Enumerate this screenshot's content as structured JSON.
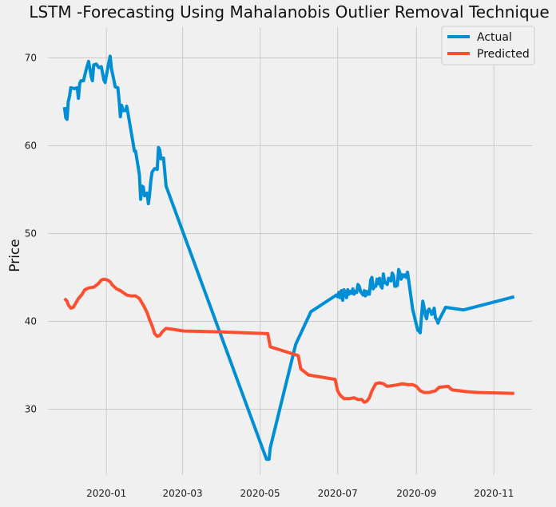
{
  "chart_data": {
    "type": "line",
    "title": "LSTM -Forecasting Using Mahalanobis Outlier Removal Technique",
    "xlabel": "",
    "ylabel": "Price",
    "x_axis_type": "date",
    "xlim": [
      "2019-11-16",
      "2020-12-01"
    ],
    "ylim": [
      22.5,
      73.5
    ],
    "x_tick_labels": [
      "2020-01",
      "2020-03",
      "2020-05",
      "2020-07",
      "2020-09",
      "2020-11"
    ],
    "y_tick_labels": [
      30,
      40,
      50,
      60,
      70
    ],
    "grid": true,
    "legend_position": "top-right",
    "colors": {
      "background": "#f0f0f0",
      "grid": "#cbcbcb",
      "actual": "#008fd5",
      "predicted": "#fc4f30"
    },
    "series": [
      {
        "name": "Actual",
        "points": [
          [
            "2019-11-29",
            64.4
          ],
          [
            "2019-11-30",
            63.2
          ],
          [
            "2019-12-01",
            63.0
          ],
          [
            "2019-12-02",
            65.0
          ],
          [
            "2019-12-03",
            65.6
          ],
          [
            "2019-12-04",
            66.6
          ],
          [
            "2019-12-07",
            66.5
          ],
          [
            "2019-12-09",
            66.6
          ],
          [
            "2019-12-10",
            65.4
          ],
          [
            "2019-12-11",
            67.1
          ],
          [
            "2019-12-12",
            67.4
          ],
          [
            "2019-12-14",
            67.4
          ],
          [
            "2019-12-16",
            68.6
          ],
          [
            "2019-12-17",
            69.1
          ],
          [
            "2019-12-18",
            69.6
          ],
          [
            "2019-12-19",
            68.8
          ],
          [
            "2019-12-20",
            67.9
          ],
          [
            "2019-12-21",
            67.4
          ],
          [
            "2019-12-22",
            69.2
          ],
          [
            "2019-12-24",
            69.3
          ],
          [
            "2019-12-26",
            68.9
          ],
          [
            "2019-12-28",
            69.0
          ],
          [
            "2019-12-30",
            67.5
          ],
          [
            "2019-12-31",
            67.2
          ],
          [
            "2020-01-01",
            68.0
          ],
          [
            "2020-01-03",
            69.5
          ],
          [
            "2020-01-04",
            70.2
          ],
          [
            "2020-01-05",
            68.8
          ],
          [
            "2020-01-07",
            67.4
          ],
          [
            "2020-01-08",
            66.7
          ],
          [
            "2020-01-10",
            66.6
          ],
          [
            "2020-01-11",
            65.2
          ],
          [
            "2020-01-12",
            63.3
          ],
          [
            "2020-01-13",
            64.6
          ],
          [
            "2020-01-14",
            64.0
          ],
          [
            "2020-01-16",
            64.0
          ],
          [
            "2020-01-17",
            64.5
          ],
          [
            "2020-01-18",
            63.7
          ],
          [
            "2020-01-20",
            62.0
          ],
          [
            "2020-01-22",
            60.3
          ],
          [
            "2020-01-23",
            59.4
          ],
          [
            "2020-01-24",
            59.4
          ],
          [
            "2020-01-25",
            58.5
          ],
          [
            "2020-01-27",
            56.7
          ],
          [
            "2020-01-28",
            53.9
          ],
          [
            "2020-01-29",
            55.4
          ],
          [
            "2020-01-30",
            55.3
          ],
          [
            "2020-01-31",
            54.3
          ],
          [
            "2020-02-02",
            54.6
          ],
          [
            "2020-02-03",
            53.4
          ],
          [
            "2020-02-04",
            54.4
          ],
          [
            "2020-02-05",
            56.0
          ],
          [
            "2020-02-06",
            57.0
          ],
          [
            "2020-02-08",
            57.4
          ],
          [
            "2020-02-10",
            57.3
          ],
          [
            "2020-02-11",
            59.8
          ],
          [
            "2020-02-12",
            59.5
          ],
          [
            "2020-02-13",
            58.5
          ],
          [
            "2020-02-15",
            58.6
          ],
          [
            "2020-02-17",
            55.4
          ],
          [
            "2020-05-06",
            24.3
          ],
          [
            "2020-05-08",
            24.3
          ],
          [
            "2020-05-09",
            25.6
          ],
          [
            "2020-05-29",
            37.4
          ],
          [
            "2020-05-31",
            38.0
          ],
          [
            "2020-06-10",
            41.1
          ],
          [
            "2020-06-30",
            43.0
          ],
          [
            "2020-07-01",
            42.8
          ],
          [
            "2020-07-02",
            43.3
          ],
          [
            "2020-07-03",
            42.7
          ],
          [
            "2020-07-04",
            43.5
          ],
          [
            "2020-07-05",
            42.4
          ],
          [
            "2020-07-06",
            43.6
          ],
          [
            "2020-07-07",
            43.3
          ],
          [
            "2020-07-08",
            42.7
          ],
          [
            "2020-07-09",
            43.6
          ],
          [
            "2020-07-10",
            43.1
          ],
          [
            "2020-07-11",
            43.4
          ],
          [
            "2020-07-12",
            43.2
          ],
          [
            "2020-07-13",
            43.7
          ],
          [
            "2020-07-14",
            43.1
          ],
          [
            "2020-07-15",
            43.4
          ],
          [
            "2020-07-16",
            43.3
          ],
          [
            "2020-07-17",
            44.2
          ],
          [
            "2020-07-18",
            44.0
          ],
          [
            "2020-07-19",
            43.4
          ],
          [
            "2020-07-20",
            43.2
          ],
          [
            "2020-07-21",
            43.0
          ],
          [
            "2020-07-22",
            43.5
          ],
          [
            "2020-07-23",
            42.9
          ],
          [
            "2020-07-24",
            43.4
          ],
          [
            "2020-07-25",
            43.1
          ],
          [
            "2020-07-26",
            43.1
          ],
          [
            "2020-07-27",
            44.7
          ],
          [
            "2020-07-28",
            45.0
          ],
          [
            "2020-07-29",
            43.7
          ],
          [
            "2020-07-30",
            44.0
          ],
          [
            "2020-07-31",
            44.0
          ],
          [
            "2020-08-01",
            44.8
          ],
          [
            "2020-08-02",
            44.3
          ],
          [
            "2020-08-03",
            44.9
          ],
          [
            "2020-08-04",
            44.0
          ],
          [
            "2020-08-05",
            43.8
          ],
          [
            "2020-08-06",
            45.4
          ],
          [
            "2020-08-07",
            44.4
          ],
          [
            "2020-08-08",
            44.4
          ],
          [
            "2020-08-09",
            44.2
          ],
          [
            "2020-08-10",
            44.9
          ],
          [
            "2020-08-11",
            44.8
          ],
          [
            "2020-08-12",
            44.6
          ],
          [
            "2020-08-13",
            45.5
          ],
          [
            "2020-08-14",
            45.2
          ],
          [
            "2020-08-15",
            44.0
          ],
          [
            "2020-08-16",
            44.0
          ],
          [
            "2020-08-17",
            44.1
          ],
          [
            "2020-08-18",
            45.9
          ],
          [
            "2020-08-19",
            45.5
          ],
          [
            "2020-08-20",
            44.8
          ],
          [
            "2020-08-21",
            45.3
          ],
          [
            "2020-08-22",
            45.1
          ],
          [
            "2020-08-23",
            45.3
          ],
          [
            "2020-08-24",
            45.0
          ],
          [
            "2020-08-25",
            45.6
          ],
          [
            "2020-08-26",
            44.6
          ],
          [
            "2020-08-29",
            41.4
          ],
          [
            "2020-09-02",
            39.0
          ],
          [
            "2020-09-03",
            38.9
          ],
          [
            "2020-09-04",
            38.7
          ],
          [
            "2020-09-05",
            40.5
          ],
          [
            "2020-09-06",
            42.3
          ],
          [
            "2020-09-07",
            41.6
          ],
          [
            "2020-09-08",
            40.7
          ],
          [
            "2020-09-09",
            40.3
          ],
          [
            "2020-09-10",
            41.2
          ],
          [
            "2020-09-11",
            41.4
          ],
          [
            "2020-09-12",
            41.2
          ],
          [
            "2020-09-13",
            40.8
          ],
          [
            "2020-09-14",
            40.9
          ],
          [
            "2020-09-15",
            41.5
          ],
          [
            "2020-09-16",
            40.4
          ],
          [
            "2020-09-17",
            40.2
          ],
          [
            "2020-09-18",
            39.8
          ],
          [
            "2020-09-19",
            40.2
          ],
          [
            "2020-09-24",
            41.6
          ],
          [
            "2020-10-08",
            41.3
          ],
          [
            "2020-11-17",
            42.8
          ]
        ]
      },
      {
        "name": "Predicted",
        "points": [
          [
            "2019-11-29",
            42.6
          ],
          [
            "2019-12-01",
            42.3
          ],
          [
            "2019-12-02",
            41.9
          ],
          [
            "2019-12-04",
            41.5
          ],
          [
            "2019-12-06",
            41.6
          ],
          [
            "2019-12-08",
            42.1
          ],
          [
            "2019-12-10",
            42.6
          ],
          [
            "2019-12-13",
            43.1
          ],
          [
            "2019-12-15",
            43.6
          ],
          [
            "2019-12-18",
            43.8
          ],
          [
            "2019-12-22",
            43.9
          ],
          [
            "2019-12-25",
            44.2
          ],
          [
            "2019-12-28",
            44.7
          ],
          [
            "2019-12-30",
            44.8
          ],
          [
            "2020-01-02",
            44.7
          ],
          [
            "2020-01-04",
            44.5
          ],
          [
            "2020-01-06",
            44.1
          ],
          [
            "2020-01-09",
            43.7
          ],
          [
            "2020-01-12",
            43.5
          ],
          [
            "2020-01-15",
            43.2
          ],
          [
            "2020-01-17",
            43.0
          ],
          [
            "2020-01-20",
            42.9
          ],
          [
            "2020-01-24",
            42.9
          ],
          [
            "2020-01-27",
            42.6
          ],
          [
            "2020-01-29",
            42.1
          ],
          [
            "2020-01-31",
            41.6
          ],
          [
            "2020-02-02",
            41.0
          ],
          [
            "2020-02-04",
            40.2
          ],
          [
            "2020-02-06",
            39.5
          ],
          [
            "2020-02-08",
            38.6
          ],
          [
            "2020-02-10",
            38.3
          ],
          [
            "2020-02-12",
            38.4
          ],
          [
            "2020-02-14",
            38.8
          ],
          [
            "2020-02-17",
            39.2
          ],
          [
            "2020-02-22",
            39.1
          ],
          [
            "2020-03-02",
            38.9
          ],
          [
            "2020-04-01",
            38.8
          ],
          [
            "2020-05-07",
            38.6
          ],
          [
            "2020-05-09",
            37.1
          ],
          [
            "2020-05-31",
            36.1
          ],
          [
            "2020-06-02",
            34.6
          ],
          [
            "2020-06-08",
            33.9
          ],
          [
            "2020-06-29",
            33.4
          ],
          [
            "2020-07-01",
            32.1
          ],
          [
            "2020-07-03",
            31.6
          ],
          [
            "2020-07-06",
            31.2
          ],
          [
            "2020-07-10",
            31.2
          ],
          [
            "2020-07-14",
            31.3
          ],
          [
            "2020-07-17",
            31.1
          ],
          [
            "2020-07-20",
            31.1
          ],
          [
            "2020-07-22",
            30.8
          ],
          [
            "2020-07-24",
            30.9
          ],
          [
            "2020-07-26",
            31.3
          ],
          [
            "2020-07-28",
            32.1
          ],
          [
            "2020-07-31",
            32.9
          ],
          [
            "2020-08-03",
            33.0
          ],
          [
            "2020-08-06",
            32.9
          ],
          [
            "2020-08-09",
            32.6
          ],
          [
            "2020-08-14",
            32.7
          ],
          [
            "2020-08-18",
            32.8
          ],
          [
            "2020-08-21",
            32.9
          ],
          [
            "2020-08-25",
            32.8
          ],
          [
            "2020-08-29",
            32.8
          ],
          [
            "2020-09-01",
            32.6
          ],
          [
            "2020-09-04",
            32.1
          ],
          [
            "2020-09-07",
            31.9
          ],
          [
            "2020-09-11",
            31.9
          ],
          [
            "2020-09-16",
            32.1
          ],
          [
            "2020-09-19",
            32.5
          ],
          [
            "2020-09-26",
            32.6
          ],
          [
            "2020-09-29",
            32.2
          ],
          [
            "2020-10-05",
            32.1
          ],
          [
            "2020-10-10",
            32.0
          ],
          [
            "2020-10-20",
            31.9
          ],
          [
            "2020-11-17",
            31.8
          ]
        ]
      }
    ]
  }
}
